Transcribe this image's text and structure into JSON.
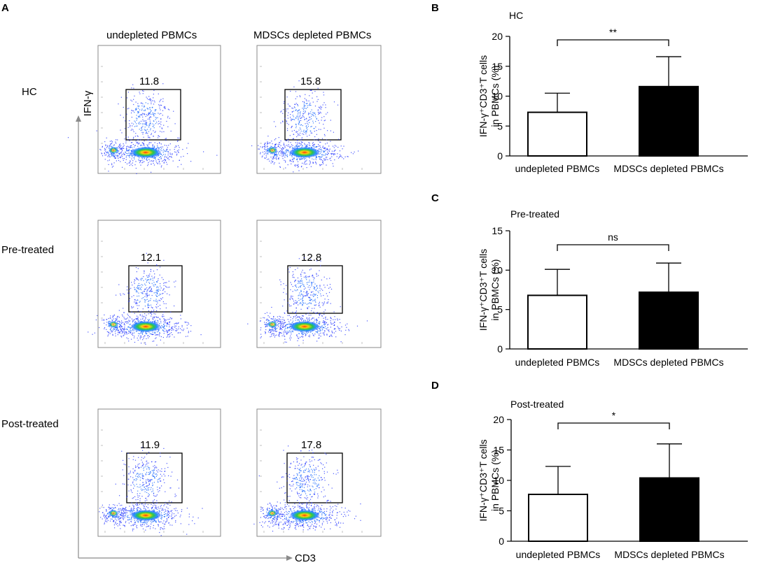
{
  "panel_a": {
    "label": "A",
    "column_titles": [
      "undepleted PBMCs",
      "MDSCs depleted PBMCs"
    ],
    "row_labels": [
      "HC",
      "Pre-treated",
      "Post-treated"
    ],
    "y_axis_label": "IFN-γ",
    "x_axis_label": "CD3",
    "gate_values": [
      [
        "11.8",
        "15.8"
      ],
      [
        "12.1",
        "12.8"
      ],
      [
        "11.9",
        "17.8"
      ]
    ]
  },
  "chart_data": [
    {
      "panel": "B",
      "type": "bar",
      "title": "HC",
      "categories": [
        "undepleted PBMCs",
        "MDSCs depleted PBMCs"
      ],
      "values": [
        7.3,
        11.6
      ],
      "errors": [
        3.2,
        5.0
      ],
      "bar_colors": [
        "#ffffff",
        "#000000"
      ],
      "ylabel_lines": [
        "IFN-γ⁺CD3⁺T cells",
        "in PBMCs (%)"
      ],
      "ylim": [
        0,
        20
      ],
      "yticks": [
        0,
        5,
        10,
        15,
        20
      ],
      "significance": "**"
    },
    {
      "panel": "C",
      "type": "bar",
      "title": "Pre-treated",
      "categories": [
        "undepleted PBMCs",
        "MDSCs depleted PBMCs"
      ],
      "values": [
        6.8,
        7.2
      ],
      "errors": [
        3.3,
        3.7
      ],
      "bar_colors": [
        "#ffffff",
        "#000000"
      ],
      "ylabel_lines": [
        "IFN-γ⁺CD3⁺T cells",
        "in PBMCs (%)"
      ],
      "ylim": [
        0,
        15
      ],
      "yticks": [
        0,
        5,
        10,
        15
      ],
      "significance": "ns"
    },
    {
      "panel": "D",
      "type": "bar",
      "title": "Post-treated",
      "categories": [
        "undepleted PBMCs",
        "MDSCs depleted PBMCs"
      ],
      "values": [
        7.7,
        10.4
      ],
      "errors": [
        4.6,
        5.6
      ],
      "bar_colors": [
        "#ffffff",
        "#000000"
      ],
      "ylabel_lines": [
        "IFN-γ⁺CD3⁺T cells",
        "in PBMCs (%)"
      ],
      "ylim": [
        0,
        20
      ],
      "yticks": [
        0,
        5,
        10,
        15,
        20
      ],
      "significance": "*"
    }
  ]
}
